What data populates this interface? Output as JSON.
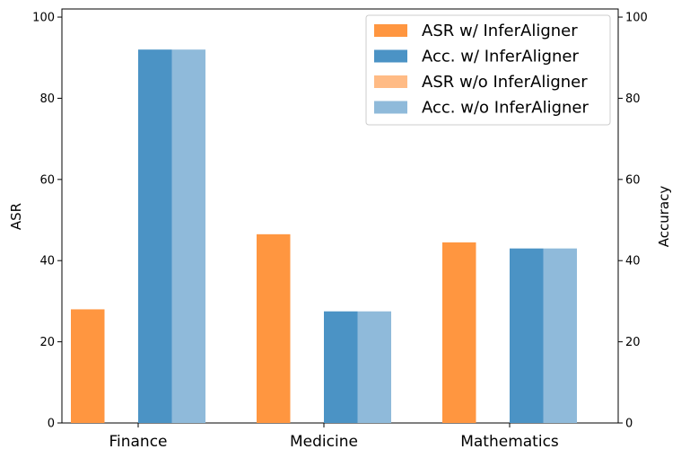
{
  "chart_data": {
    "type": "bar",
    "categories": [
      "Finance",
      "Medicine",
      "Mathematics"
    ],
    "series": [
      {
        "name": "ASR w/ InferAligner",
        "axis": "left",
        "color": "#ff9640",
        "values": [
          28.0,
          46.5,
          44.5
        ]
      },
      {
        "name": "ASR w/o InferAligner",
        "axis": "left",
        "color": "#ffbb85",
        "values": [
          0,
          0,
          0
        ]
      },
      {
        "name": "Acc. w/ InferAligner",
        "axis": "right",
        "color": "#4b93c5",
        "values": [
          92.0,
          27.5,
          43.0
        ]
      },
      {
        "name": "Acc. w/o InferAligner",
        "axis": "right",
        "color": "#8fbada",
        "values": [
          92.0,
          27.5,
          43.0
        ]
      }
    ],
    "legend_order": [
      0,
      2,
      1,
      3
    ],
    "legend_placement": "top-right",
    "ylabel": "ASR",
    "ylabel_right": "Accuracy",
    "ylim": [
      0,
      102
    ],
    "ylim_right": [
      0,
      102
    ],
    "yticks": [
      0,
      20,
      40,
      60,
      80,
      100
    ],
    "yticks_right": [
      0,
      20,
      40,
      60,
      80,
      100
    ],
    "grid": false
  }
}
